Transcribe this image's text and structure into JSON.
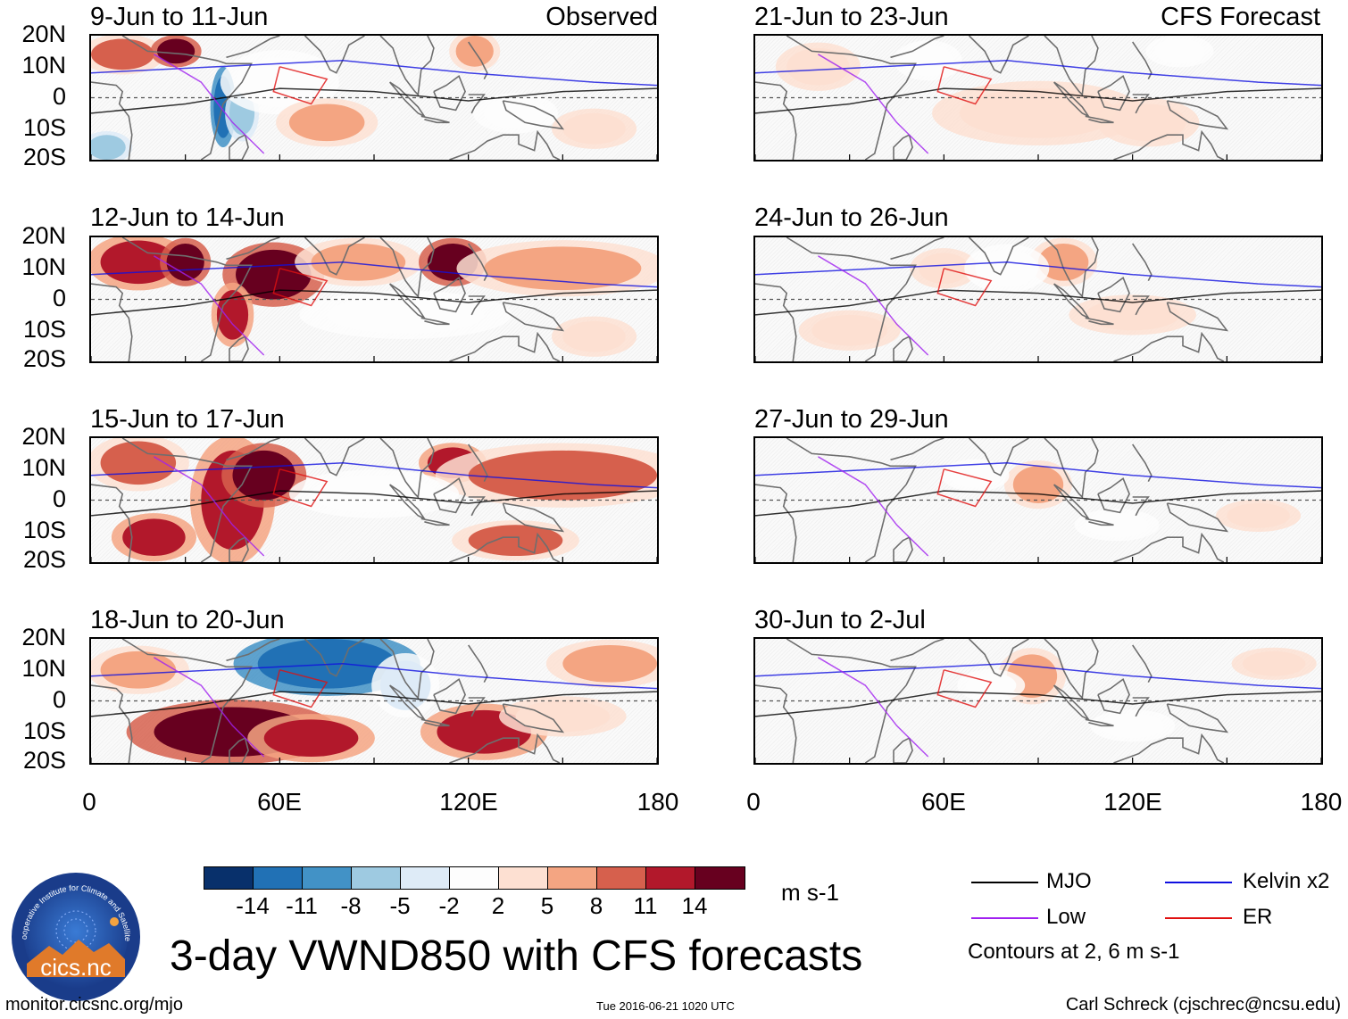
{
  "panels": [
    {
      "title": "9-Jun to 11-Jun",
      "tag": "Observed",
      "column": "left",
      "row": 0,
      "blobs": [
        {
          "lon": 10,
          "lat": 14,
          "rl": 10,
          "rt": 5,
          "v": 8
        },
        {
          "lon": 27,
          "lat": 15,
          "rl": 6,
          "rt": 4,
          "v": 14
        },
        {
          "lon": 42,
          "lat": -3,
          "rl": 3,
          "rt": 10,
          "v": -14
        },
        {
          "lon": 48,
          "lat": -5,
          "rl": 4,
          "rt": 7,
          "v": -8
        },
        {
          "lon": 5,
          "lat": -16,
          "rl": 6,
          "rt": 4,
          "v": -8
        },
        {
          "lon": 60,
          "lat": 5,
          "rl": 14,
          "rt": 8,
          "v": -2
        },
        {
          "lon": 75,
          "lat": -8,
          "rl": 12,
          "rt": 6,
          "v": 5
        },
        {
          "lon": 122,
          "lat": 15,
          "rl": 6,
          "rt": 5,
          "v": 5
        },
        {
          "lon": 135,
          "lat": -5,
          "rl": 10,
          "rt": 5,
          "v": -2
        },
        {
          "lon": 160,
          "lat": -10,
          "rl": 10,
          "rt": 5,
          "v": 2
        }
      ]
    },
    {
      "title": "12-Jun to 14-Jun",
      "tag": "",
      "column": "left",
      "row": 1,
      "blobs": [
        {
          "lon": 15,
          "lat": 12,
          "rl": 12,
          "rt": 7,
          "v": 11
        },
        {
          "lon": 30,
          "lat": 12,
          "rl": 6,
          "rt": 6,
          "v": 14
        },
        {
          "lon": 58,
          "lat": 8,
          "rl": 12,
          "rt": 8,
          "v": 14
        },
        {
          "lon": 45,
          "lat": -5,
          "rl": 5,
          "rt": 8,
          "v": 11
        },
        {
          "lon": 85,
          "lat": 12,
          "rl": 15,
          "rt": 6,
          "v": 5
        },
        {
          "lon": 115,
          "lat": 12,
          "rl": 8,
          "rt": 6,
          "v": 14
        },
        {
          "lon": 150,
          "lat": 10,
          "rl": 25,
          "rt": 7,
          "v": 5
        },
        {
          "lon": 100,
          "lat": -5,
          "rl": 25,
          "rt": 6,
          "v": -2
        },
        {
          "lon": 160,
          "lat": -12,
          "rl": 10,
          "rt": 5,
          "v": 2
        }
      ]
    },
    {
      "title": "15-Jun to 17-Jun",
      "tag": "",
      "column": "left",
      "row": 2,
      "blobs": [
        {
          "lon": 15,
          "lat": 12,
          "rl": 12,
          "rt": 7,
          "v": 8
        },
        {
          "lon": 45,
          "lat": 0,
          "rl": 10,
          "rt": 16,
          "v": 11
        },
        {
          "lon": 55,
          "lat": 8,
          "rl": 10,
          "rt": 8,
          "v": 14
        },
        {
          "lon": 20,
          "lat": -12,
          "rl": 10,
          "rt": 6,
          "v": 11
        },
        {
          "lon": 115,
          "lat": 12,
          "rl": 8,
          "rt": 5,
          "v": 11
        },
        {
          "lon": 150,
          "lat": 8,
          "rl": 30,
          "rt": 8,
          "v": 8
        },
        {
          "lon": 135,
          "lat": -13,
          "rl": 15,
          "rt": 5,
          "v": 8
        },
        {
          "lon": 90,
          "lat": 2,
          "rl": 20,
          "rt": 6,
          "v": -2
        }
      ]
    },
    {
      "title": "18-Jun to 20-Jun",
      "tag": "",
      "column": "left",
      "row": 3,
      "blobs": [
        {
          "lon": 75,
          "lat": 12,
          "rl": 22,
          "rt": 8,
          "v": -14
        },
        {
          "lon": 100,
          "lat": 5,
          "rl": 8,
          "rt": 8,
          "v": -5
        },
        {
          "lon": 45,
          "lat": -10,
          "rl": 25,
          "rt": 8,
          "v": 14
        },
        {
          "lon": 70,
          "lat": -12,
          "rl": 15,
          "rt": 6,
          "v": 11
        },
        {
          "lon": 125,
          "lat": -10,
          "rl": 15,
          "rt": 7,
          "v": 11
        },
        {
          "lon": 15,
          "lat": 10,
          "rl": 12,
          "rt": 6,
          "v": 5
        },
        {
          "lon": 165,
          "lat": 12,
          "rl": 15,
          "rt": 6,
          "v": 5
        },
        {
          "lon": 150,
          "lat": -5,
          "rl": 15,
          "rt": 5,
          "v": 2
        }
      ]
    },
    {
      "title": "21-Jun to 23-Jun",
      "tag": "CFS Forecast",
      "column": "right",
      "row": 0,
      "blobs": [
        {
          "lon": 20,
          "lat": 10,
          "rl": 10,
          "rt": 6,
          "v": 2
        },
        {
          "lon": 55,
          "lat": 12,
          "rl": 8,
          "rt": 5,
          "v": -2
        },
        {
          "lon": 90,
          "lat": -5,
          "rl": 25,
          "rt": 8,
          "v": 2
        },
        {
          "lon": 125,
          "lat": -8,
          "rl": 12,
          "rt": 6,
          "v": 2
        },
        {
          "lon": 135,
          "lat": 15,
          "rl": 8,
          "rt": 4,
          "v": -2
        }
      ]
    },
    {
      "title": "24-Jun to 26-Jun",
      "tag": "",
      "column": "right",
      "row": 1,
      "blobs": [
        {
          "lon": 98,
          "lat": 12,
          "rl": 8,
          "rt": 6,
          "v": 5
        },
        {
          "lon": 60,
          "lat": 10,
          "rl": 8,
          "rt": 5,
          "v": 2
        },
        {
          "lon": 80,
          "lat": 10,
          "rl": 10,
          "rt": 6,
          "v": -2
        },
        {
          "lon": 120,
          "lat": -5,
          "rl": 15,
          "rt": 5,
          "v": 2
        },
        {
          "lon": 30,
          "lat": -10,
          "rl": 12,
          "rt": 5,
          "v": 2
        }
      ]
    },
    {
      "title": "27-Jun to 29-Jun",
      "tag": "",
      "column": "right",
      "row": 2,
      "blobs": [
        {
          "lon": 90,
          "lat": 5,
          "rl": 8,
          "rt": 6,
          "v": 5
        },
        {
          "lon": 70,
          "lat": 8,
          "rl": 8,
          "rt": 4,
          "v": -2
        },
        {
          "lon": 115,
          "lat": -8,
          "rl": 10,
          "rt": 4,
          "v": -2
        },
        {
          "lon": 160,
          "lat": -5,
          "rl": 10,
          "rt": 4,
          "v": 2
        }
      ]
    },
    {
      "title": "30-Jun to 2-Jul",
      "tag": "",
      "column": "right",
      "row": 3,
      "blobs": [
        {
          "lon": 88,
          "lat": 8,
          "rl": 8,
          "rt": 7,
          "v": 5
        },
        {
          "lon": 75,
          "lat": 5,
          "rl": 8,
          "rt": 4,
          "v": -2
        },
        {
          "lon": 120,
          "lat": -8,
          "rl": 10,
          "rt": 4,
          "v": -2
        },
        {
          "lon": 165,
          "lat": 12,
          "rl": 10,
          "rt": 4,
          "v": 2
        }
      ]
    }
  ],
  "axes": {
    "lat_ticks": [
      "20N",
      "10N",
      "0",
      "10S",
      "20S"
    ],
    "lon_ticks": [
      "0",
      "60E",
      "120E",
      "180"
    ],
    "lat_range": [
      -20,
      20
    ],
    "lon_range": [
      0,
      180
    ]
  },
  "colorbar": {
    "colors": [
      "#08306b",
      "#2171b5",
      "#4292c6",
      "#9ecae1",
      "#deebf7",
      "#fdfdfd",
      "#fde0d2",
      "#f4a582",
      "#d6604d",
      "#b2182b",
      "#67001f"
    ],
    "ticks": [
      "-14",
      "-11",
      "-8",
      "-5",
      "-2",
      "2",
      "5",
      "8",
      "11",
      "14"
    ],
    "unit": "m s-1"
  },
  "legend": {
    "items": [
      {
        "label": "MJO",
        "color": "#000000"
      },
      {
        "label": "Kelvin x2",
        "color": "#1010e0"
      },
      {
        "label": "Low",
        "color": "#a020f0"
      },
      {
        "label": "ER",
        "color": "#e01010"
      }
    ],
    "note": "Contours at 2, 6 m s-1"
  },
  "title": "3-day VWND850 with CFS forecasts",
  "footer": {
    "url": "monitor.cicsnc.org/mjo",
    "timestamp": "Tue 2016-06-21 1020 UTC",
    "credit": "Carl Schreck (cjschrec@ncsu.edu)"
  },
  "logo": {
    "name": "cics.nc",
    "ring_text": "Cooperative Institute for Climate and Satellites"
  }
}
